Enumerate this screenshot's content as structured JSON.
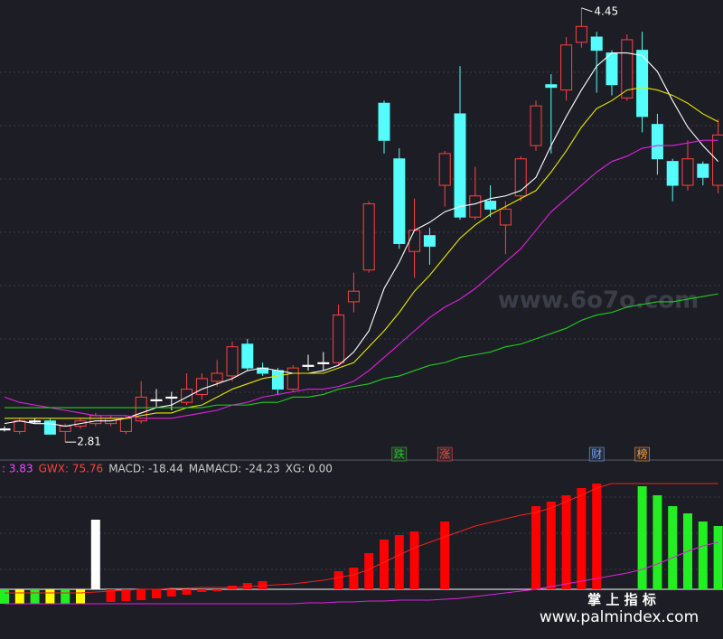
{
  "chart_data": [
    {
      "type": "candlestick",
      "open": [
        2.86,
        2.85,
        2.89,
        2.89,
        2.85,
        2.87,
        2.88,
        2.88,
        2.85,
        2.89,
        2.97,
        2.98,
        2.96,
        2.99,
        3.04,
        3.06,
        3.18,
        3.09,
        3.08,
        3.01,
        3.1,
        3.11,
        3.11,
        3.34,
        3.46,
        4.09,
        3.88,
        3.53,
        3.59,
        3.78,
        4.05,
        3.66,
        3.72,
        3.63,
        3.74,
        3.93,
        4.16,
        4.14,
        4.32,
        4.34,
        4.28,
        4.11,
        4.29,
        4.01,
        3.87,
        3.78,
        3.86,
        3.78
      ],
      "high": [
        2.87,
        2.9,
        2.9,
        2.9,
        2.88,
        2.9,
        2.92,
        2.91,
        2.91,
        3.04,
        3.01,
        3.0,
        3.07,
        3.07,
        3.12,
        3.19,
        3.2,
        3.11,
        3.09,
        3.1,
        3.14,
        3.15,
        3.33,
        3.45,
        3.72,
        4.1,
        3.92,
        3.73,
        3.62,
        3.91,
        4.23,
        3.85,
        3.78,
        3.72,
        3.89,
        4.1,
        4.2,
        4.34,
        4.45,
        4.36,
        4.29,
        4.35,
        4.36,
        4.05,
        3.88,
        3.95,
        3.87,
        4.03
      ],
      "low": [
        2.85,
        2.84,
        2.88,
        2.84,
        2.81,
        2.86,
        2.87,
        2.87,
        2.84,
        2.88,
        2.94,
        2.93,
        2.95,
        2.97,
        3.02,
        3.04,
        3.08,
        3.06,
        2.99,
        3.0,
        3.08,
        3.08,
        3.1,
        3.3,
        3.45,
        3.9,
        3.54,
        3.43,
        3.48,
        3.7,
        3.65,
        3.65,
        3.66,
        3.52,
        3.72,
        3.91,
        3.9,
        4.1,
        4.3,
        4.13,
        4.12,
        4.1,
        3.98,
        3.82,
        3.72,
        3.76,
        3.78,
        3.75
      ],
      "close": [
        2.86,
        2.89,
        2.89,
        2.84,
        2.87,
        2.89,
        2.91,
        2.9,
        2.9,
        2.98,
        2.97,
        2.98,
        3.01,
        3.05,
        3.07,
        3.17,
        3.09,
        3.07,
        3.01,
        3.09,
        3.1,
        3.11,
        3.29,
        3.38,
        3.71,
        3.95,
        3.56,
        3.61,
        3.55,
        3.9,
        3.66,
        3.74,
        3.69,
        3.69,
        3.88,
        4.08,
        4.15,
        4.31,
        4.38,
        4.29,
        4.16,
        4.33,
        4.04,
        3.88,
        3.78,
        3.88,
        3.81,
        3.97
      ],
      "up_color": "#ff4040",
      "down_color": "#54fcfc",
      "flat_color": "#ffffff",
      "lines": [
        {
          "color": "#ffffff",
          "values": [
            2.88,
            2.89,
            2.88,
            2.88,
            2.87,
            2.88,
            2.89,
            2.89,
            2.9,
            2.92,
            2.94,
            2.95,
            2.98,
            3.01,
            3.03,
            3.05,
            3.08,
            3.09,
            3.08,
            3.07,
            3.07,
            3.08,
            3.1,
            3.15,
            3.23,
            3.39,
            3.49,
            3.61,
            3.64,
            3.68,
            3.7,
            3.71,
            3.73,
            3.74,
            3.76,
            3.81,
            3.93,
            4.04,
            4.14,
            4.23,
            4.28,
            4.28,
            4.27,
            4.21,
            4.1,
            4.0,
            3.93,
            3.87
          ]
        },
        {
          "color": "#e6e600",
          "values": [
            2.9,
            2.9,
            2.9,
            2.9,
            2.9,
            2.9,
            2.9,
            2.9,
            2.9,
            2.91,
            2.92,
            2.92,
            2.94,
            2.95,
            2.98,
            3.01,
            3.03,
            3.05,
            3.06,
            3.07,
            3.07,
            3.07,
            3.09,
            3.11,
            3.17,
            3.23,
            3.3,
            3.38,
            3.44,
            3.51,
            3.58,
            3.63,
            3.67,
            3.7,
            3.73,
            3.76,
            3.83,
            3.91,
            4.0,
            4.07,
            4.1,
            4.14,
            4.15,
            4.14,
            4.12,
            4.09,
            4.05,
            4.02
          ]
        },
        {
          "color": "#e020e0",
          "values": [
            2.98,
            2.96,
            2.95,
            2.94,
            2.93,
            2.92,
            2.91,
            2.91,
            2.91,
            2.9,
            2.9,
            2.9,
            2.91,
            2.92,
            2.93,
            2.95,
            2.96,
            2.98,
            2.99,
            3.0,
            3.01,
            3.01,
            3.02,
            3.04,
            3.08,
            3.13,
            3.18,
            3.23,
            3.28,
            3.32,
            3.35,
            3.39,
            3.44,
            3.49,
            3.54,
            3.61,
            3.68,
            3.73,
            3.78,
            3.83,
            3.87,
            3.89,
            3.92,
            3.93,
            3.93,
            3.94,
            3.95,
            3.95
          ]
        },
        {
          "color": "#22cc22",
          "values": [
            2.94,
            2.94,
            2.94,
            2.94,
            2.94,
            2.94,
            2.94,
            2.94,
            2.94,
            2.94,
            2.94,
            2.94,
            2.94,
            2.94,
            2.95,
            2.95,
            2.95,
            2.96,
            2.96,
            2.98,
            2.98,
            2.99,
            3.01,
            3.02,
            3.03,
            3.05,
            3.06,
            3.08,
            3.1,
            3.11,
            3.13,
            3.14,
            3.15,
            3.17,
            3.18,
            3.2,
            3.22,
            3.24,
            3.27,
            3.29,
            3.3,
            3.32,
            3.33,
            3.34,
            3.34,
            3.35,
            3.36,
            3.37
          ]
        }
      ],
      "ylim": [
        2.79,
        4.48
      ],
      "max_label": "4.45",
      "min_label": "2.81",
      "event_markers": [
        null,
        null,
        null,
        null,
        null,
        null,
        null,
        null,
        null,
        null,
        null,
        null,
        null,
        null,
        null,
        null,
        null,
        null,
        null,
        null,
        null,
        null,
        null,
        null,
        null,
        null,
        {
          "text": "跌",
          "color": "#22cc22"
        },
        null,
        null,
        {
          "text": "涨",
          "color": "#ff4040"
        },
        null,
        null,
        null,
        null,
        null,
        null,
        null,
        null,
        null,
        {
          "text": "财",
          "color": "#6aa8ff"
        },
        null,
        null,
        {
          "text": "榜",
          "color": "#ff9a30"
        },
        null,
        null,
        null,
        null,
        null
      ]
    },
    {
      "type": "bar",
      "legend": [
        {
          "text": ": 3.83",
          "color": "#ff40ff"
        },
        {
          "text": "GWX: 75.76",
          "color": "#ff4040"
        },
        {
          "text": "MACD: -18.44",
          "color": "#cccccc"
        },
        {
          "text": "MAMACD: -24.23",
          "color": "#cccccc"
        },
        {
          "text": "XG: 0.00",
          "color": "#cccccc"
        }
      ],
      "values": [
        -16,
        -16,
        -16,
        -16,
        -16,
        -16,
        77,
        -14,
        -13,
        -12,
        -10,
        -8,
        -6,
        -3,
        -2,
        4,
        7,
        9,
        null,
        null,
        null,
        null,
        20,
        24,
        40,
        55,
        60,
        64,
        null,
        75,
        null,
        null,
        null,
        null,
        null,
        92,
        97,
        104,
        112,
        117,
        null,
        null,
        114,
        104,
        92,
        84,
        75,
        70
      ],
      "colors": [
        "#22ee22",
        "#ffff00",
        "#22ee22",
        "#ffff00",
        "#22ee22",
        "#ffff00",
        "#ffffff",
        "#ff0000",
        "#ff0000",
        "#ff0000",
        "#ff0000",
        "#ff0000",
        "#ff0000",
        "#ff0000",
        "#ff0000",
        "#ff0000",
        "#ff0000",
        "#ff0000",
        null,
        null,
        null,
        null,
        "#ff0000",
        "#ff0000",
        "#ff0000",
        "#ff0000",
        "#ff0000",
        "#ff0000",
        null,
        "#ff0000",
        null,
        null,
        null,
        null,
        null,
        "#ff0000",
        "#ff0000",
        "#ff0000",
        "#ff0000",
        "#ff0000",
        null,
        null,
        "#22ee22",
        "#22ee22",
        "#22ee22",
        "#22ee22",
        "#22ee22",
        "#22ee22"
      ],
      "lines": [
        {
          "color": "#e020e0",
          "values": [
            -16,
            -16,
            -16,
            -16,
            -16,
            -16,
            -16,
            -16,
            -16,
            -16,
            -16,
            -16,
            -16,
            -16,
            -16,
            -16,
            -16,
            -16,
            -16,
            -16,
            -15,
            -15,
            -14,
            -14,
            -13,
            -13,
            -12,
            -12,
            -12,
            -11,
            -10,
            -8,
            -6,
            -4,
            -2,
            0,
            3,
            6,
            9,
            12,
            15,
            18,
            22,
            28,
            35,
            42,
            48,
            52
          ]
        },
        {
          "color": "#ee2020",
          "values": [
            -4,
            -4,
            -4,
            -4,
            -4,
            -4,
            -3,
            -2,
            -1,
            0,
            0,
            1,
            1,
            2,
            2,
            2,
            3,
            4,
            5,
            6,
            8,
            10,
            13,
            16,
            22,
            30,
            38,
            46,
            52,
            58,
            64,
            70,
            74,
            78,
            82,
            85,
            90,
            97,
            104,
            112,
            117,
            117,
            117,
            117,
            117,
            117,
            117,
            117
          ]
        }
      ],
      "ylim": [
        -55,
        142
      ]
    }
  ],
  "watermarks": {
    "site1": "www.6o7o.com",
    "brand": "掌 上 指 标",
    "site2": "www.palmindex.com"
  }
}
